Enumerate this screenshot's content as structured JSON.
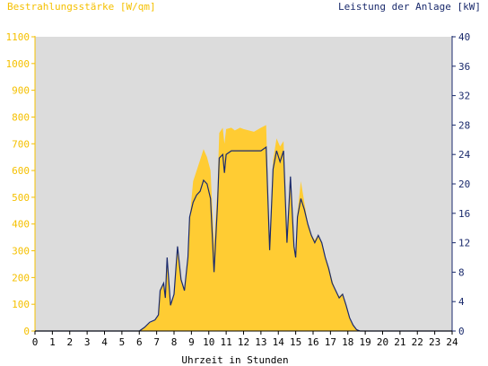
{
  "chart_data": {
    "type": "area",
    "left_axis_label": "Bestrahlungsstärke [W/qm]",
    "right_axis_label": "Leistung der Anlage [kW]",
    "xlabel": "Uhrzeit in Stunden",
    "xlim": [
      0,
      24
    ],
    "x_ticks": [
      "0",
      "1",
      "2",
      "3",
      "4",
      "5",
      "6",
      "7",
      "8",
      "9",
      "10",
      "11",
      "12",
      "13",
      "14",
      "15",
      "16",
      "17",
      "18",
      "19",
      "20",
      "21",
      "22",
      "23",
      "24"
    ],
    "left_ylim": [
      0,
      1100
    ],
    "left_ticks": [
      "0",
      "100",
      "200",
      "300",
      "400",
      "500",
      "600",
      "700",
      "800",
      "900",
      "1000",
      "1100"
    ],
    "right_ylim": [
      0,
      40
    ],
    "right_ticks": [
      "0",
      "4",
      "8",
      "12",
      "16",
      "20",
      "24",
      "28",
      "32",
      "36",
      "40"
    ],
    "grid": false,
    "colors": {
      "irradiance": "#ffcc33",
      "power": "#1a2a6c",
      "plot_bg": "#dcdcdc",
      "left_axis_text": "#f5c000",
      "right_axis_text": "#1a2a6c"
    },
    "series": [
      {
        "name": "Bestrahlungsstärke [W/qm]",
        "axis": "left",
        "x": [
          0,
          6,
          6.3,
          6.6,
          6.9,
          7.1,
          7.2,
          7.4,
          7.5,
          7.6,
          7.8,
          8.0,
          8.2,
          8.4,
          8.6,
          8.8,
          8.9,
          9.1,
          9.3,
          9.5,
          9.7,
          9.9,
          10.1,
          10.3,
          10.5,
          10.6,
          10.8,
          10.9,
          11.0,
          11.3,
          11.5,
          11.8,
          12.0,
          12.3,
          12.6,
          13.0,
          13.3,
          13.5,
          13.7,
          13.9,
          14.1,
          14.3,
          14.5,
          14.7,
          14.9,
          15.0,
          15.1,
          15.3,
          15.5,
          15.7,
          15.9,
          16.1,
          16.3,
          16.5,
          16.7,
          16.9,
          17.1,
          17.3,
          17.5,
          17.7,
          17.9,
          18.1,
          18.3,
          18.5,
          18.7,
          19.0,
          24
        ],
        "values": [
          0,
          0,
          15,
          30,
          40,
          60,
          150,
          180,
          120,
          270,
          100,
          130,
          320,
          200,
          150,
          280,
          420,
          560,
          600,
          640,
          680,
          650,
          600,
          320,
          530,
          740,
          760,
          700,
          755,
          760,
          750,
          760,
          755,
          750,
          745,
          760,
          770,
          300,
          640,
          720,
          690,
          710,
          330,
          580,
          320,
          280,
          440,
          560,
          480,
          400,
          360,
          340,
          360,
          330,
          280,
          240,
          190,
          150,
          130,
          140,
          100,
          50,
          20,
          5,
          0,
          0,
          0
        ]
      },
      {
        "name": "Leistung der Anlage [kW]",
        "axis": "right",
        "x": [
          0,
          6,
          6.3,
          6.6,
          6.9,
          7.1,
          7.2,
          7.4,
          7.5,
          7.6,
          7.8,
          8.0,
          8.2,
          8.4,
          8.6,
          8.8,
          8.9,
          9.1,
          9.3,
          9.5,
          9.7,
          9.9,
          10.1,
          10.3,
          10.5,
          10.6,
          10.8,
          10.9,
          11.0,
          11.3,
          11.5,
          11.8,
          12.0,
          12.3,
          12.6,
          13.0,
          13.3,
          13.5,
          13.7,
          13.9,
          14.1,
          14.3,
          14.5,
          14.7,
          14.9,
          15.0,
          15.1,
          15.3,
          15.5,
          15.7,
          15.9,
          16.1,
          16.3,
          16.5,
          16.7,
          16.9,
          17.1,
          17.3,
          17.5,
          17.7,
          17.9,
          18.1,
          18.3,
          18.5,
          18.7,
          19.0,
          24
        ],
        "values": [
          0,
          0,
          0.5,
          1.2,
          1.5,
          2.2,
          5.5,
          6.5,
          4.5,
          10,
          3.5,
          5,
          11.5,
          7,
          5.5,
          10,
          15.5,
          17.5,
          18.5,
          19,
          20.5,
          20,
          18,
          8,
          17,
          23.5,
          24,
          21.5,
          24,
          24.5,
          24.5,
          24.5,
          24.5,
          24.5,
          24.5,
          24.5,
          25,
          11,
          22,
          24.5,
          23,
          24.5,
          12,
          21,
          11.5,
          10,
          15.5,
          18,
          16.5,
          14.5,
          13,
          12,
          13,
          12,
          10,
          8.5,
          6.5,
          5.5,
          4.5,
          5,
          3.5,
          1.8,
          0.8,
          0.2,
          0,
          0,
          0
        ]
      }
    ]
  }
}
